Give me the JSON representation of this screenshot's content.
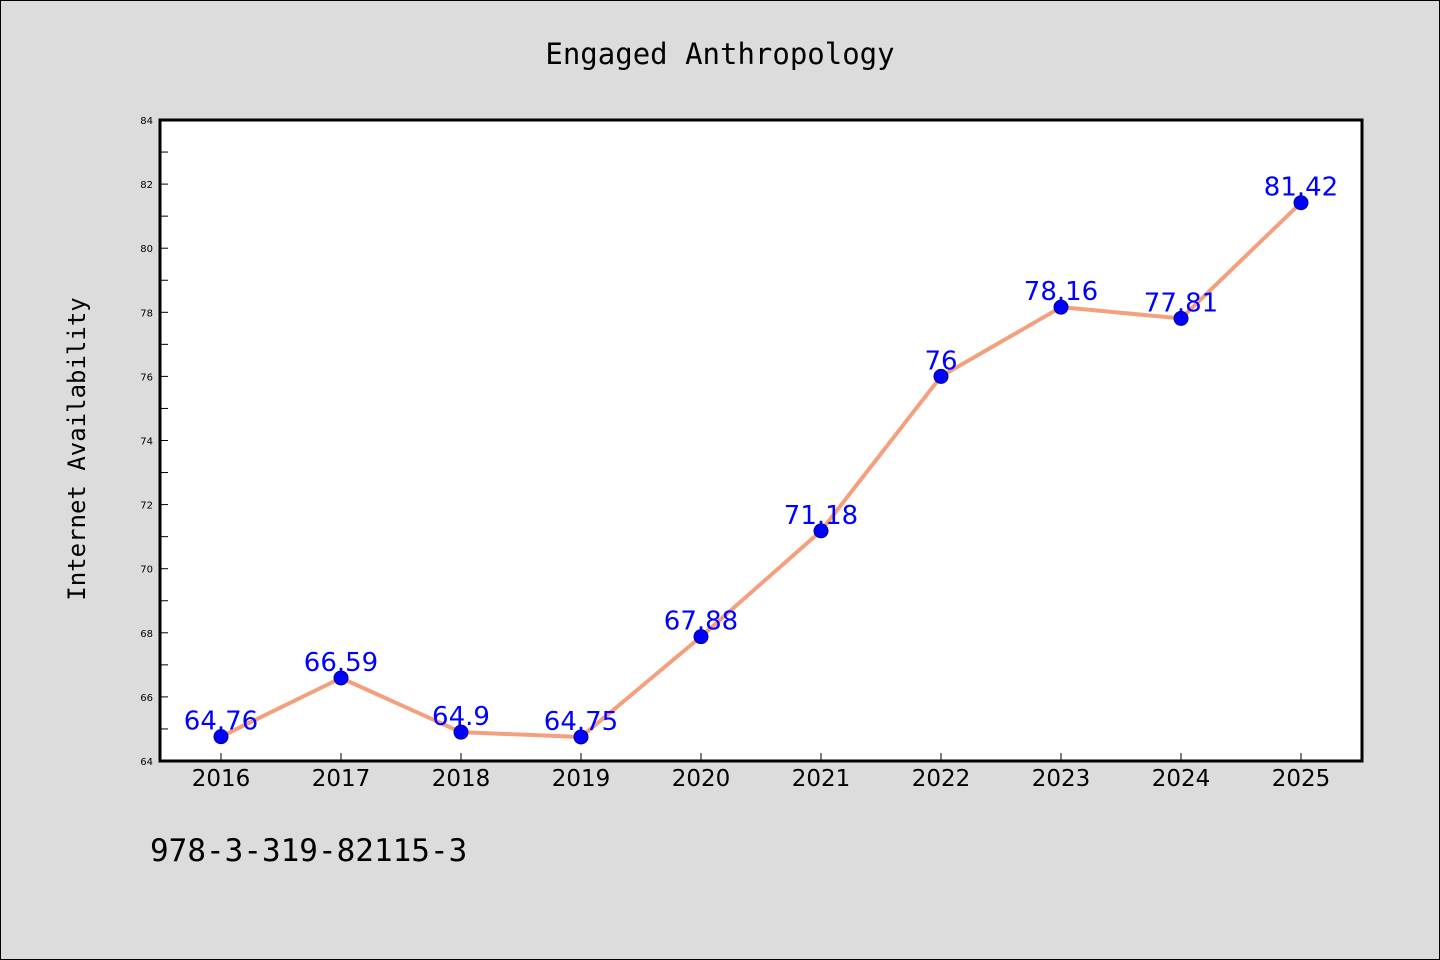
{
  "chart_data": {
    "type": "line",
    "title": "Engaged Anthropology",
    "xlabel": "",
    "ylabel": "Internet Availability",
    "categories": [
      "2016",
      "2017",
      "2018",
      "2019",
      "2020",
      "2021",
      "2022",
      "2023",
      "2024",
      "2025"
    ],
    "series": [
      {
        "values": [
          64.76,
          66.59,
          64.9,
          64.75,
          67.88,
          71.18,
          76,
          78.16,
          77.81,
          81.42
        ],
        "labels": [
          "64.76",
          "66.59",
          "64.9",
          "64.75",
          "67.88",
          "71.18",
          "76",
          "78.16",
          "77.81",
          "81.42"
        ]
      }
    ],
    "ylim": [
      64,
      84
    ],
    "yticks": [
      64,
      66,
      68,
      70,
      72,
      74,
      76,
      78,
      80,
      82,
      84
    ],
    "grid": false,
    "legend": "none",
    "colors": {
      "line": "#f4a07e",
      "marker": "#0000ff",
      "marker_edge": "#00008b",
      "data_label": "#0000ff",
      "background": "#dcdcdc",
      "plot_background": "#ffffff"
    }
  },
  "footer": {
    "isbn": "978-3-319-82115-3"
  }
}
